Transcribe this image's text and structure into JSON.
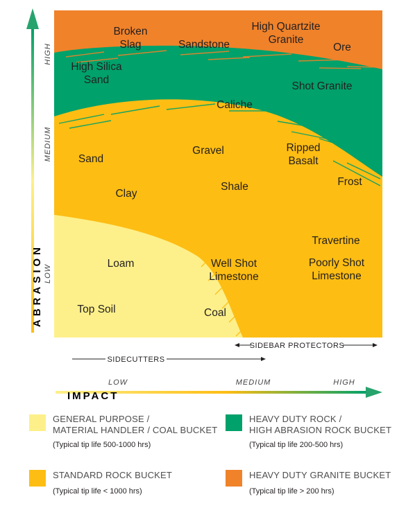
{
  "colors": {
    "orange": "#f0822a",
    "green": "#00a16a",
    "gold": "#fdbd13",
    "light_yellow": "#fdf08a",
    "axis_arrow": "#27a36d"
  },
  "labels": {
    "broken_slag": [
      "Broken",
      "Slag"
    ],
    "sandstone": "Sandstone",
    "high_quartzite_granite": [
      "High Quartzite",
      "Granite"
    ],
    "ore": "Ore",
    "high_silica_sand": [
      "High Silica",
      "Sand"
    ],
    "shot_granite": "Shot Granite",
    "caliche": "Caliche",
    "sand": "Sand",
    "gravel": "Gravel",
    "ripped_basalt": [
      "Ripped",
      "Basalt"
    ],
    "frost": "Frost",
    "clay": "Clay",
    "shale": "Shale",
    "travertine": "Travertine",
    "loam": "Loam",
    "well_shot_limestone": [
      "Well Shot",
      "Limestone"
    ],
    "poorly_shot_limestone": [
      "Poorly Shot",
      "Limestone"
    ],
    "top_soil": "Top Soil",
    "coal": "Coal"
  },
  "y_axis": {
    "title": "ABRASION",
    "high": "HIGH",
    "medium": "MEDIUM",
    "low": "LOW"
  },
  "x_axis": {
    "title": "IMPACT",
    "low": "LOW",
    "medium": "MEDIUM",
    "high": "HIGH"
  },
  "ranges": {
    "sidebar_protectors": "SIDEBAR PROTECTORS",
    "sidecutters": "SIDECUTTERS"
  },
  "legend": [
    {
      "color": "#fdf08a",
      "title": [
        "GENERAL PURPOSE /",
        "MATERIAL HANDLER / COAL BUCKET"
      ],
      "sub": "(Typical tip life 500-1000 hrs)"
    },
    {
      "color": "#00a16a",
      "title": [
        "HEAVY DUTY ROCK /",
        "HIGH ABRASION ROCK BUCKET"
      ],
      "sub": "(Typical tip life 200-500 hrs)"
    },
    {
      "color": "#fdbd13",
      "title": [
        "STANDARD ROCK BUCKET"
      ],
      "sub": "(Typical tip life < 1000 hrs)"
    },
    {
      "color": "#f0822a",
      "title": [
        "HEAVY DUTY GRANITE BUCKET"
      ],
      "sub": "(Typical tip life > 200 hrs)"
    }
  ]
}
